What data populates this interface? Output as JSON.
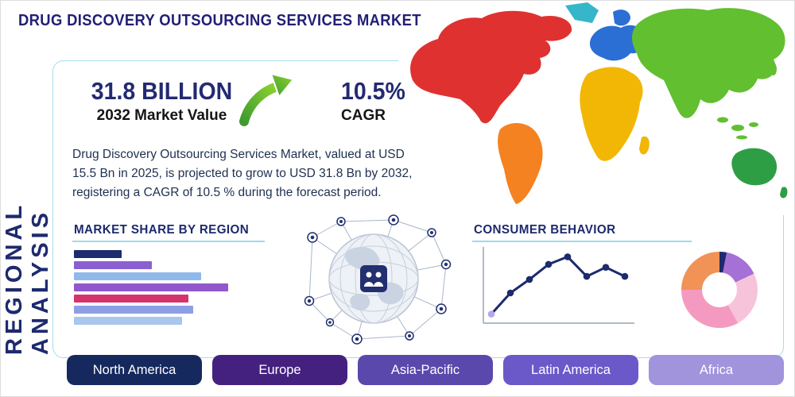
{
  "page": {
    "title": "DRUG DISCOVERY OUTSOURCING SERVICES MARKET",
    "side_label": "REGIONAL ANALYSIS"
  },
  "stats": {
    "market_value": "31.8 BILLION",
    "market_value_label": "2032 Market Value",
    "cagr_value": "10.5%",
    "cagr_label": "CAGR"
  },
  "description": "Drug Discovery Outsourcing Services Market, valued at USD 15.5 Bn in 2025, is projected to grow to USD 31.8 Bn by 2032, registering a CAGR of 10.5 % during the forecast period.",
  "sections": {
    "market_share_title": "MARKET SHARE BY REGION",
    "consumer_behavior_title": "CONSUMER BEHAVIOR"
  },
  "icons": {
    "growth_arrow": "growth-arrow-icon",
    "globe_network": "globe-network-icon"
  },
  "region_buttons": [
    {
      "label": "North America",
      "color": "#16295e"
    },
    {
      "label": "Europe",
      "color": "#45217f"
    },
    {
      "label": "Asia-Pacific",
      "color": "#5a48ad"
    },
    {
      "label": "Latin America",
      "color": "#6b59c9"
    },
    {
      "label": "Africa",
      "color": "#a193dc"
    }
  ],
  "map": {
    "colors": {
      "north_america": "#e03131",
      "greenland": "#35b6c9",
      "south_america": "#f58220",
      "europe": "#2b6fd4",
      "africa": "#f2b705",
      "asia": "#62bf30",
      "australia": "#2e9e44"
    }
  },
  "chart_data": [
    {
      "type": "bar",
      "title": "MARKET SHARE BY REGION",
      "orientation": "horizontal",
      "categories": [],
      "values": [
        30,
        49,
        80,
        97,
        72,
        75,
        68
      ],
      "colors": [
        "#1c2a6e",
        "#8a5fd0",
        "#8fb9ea",
        "#9257cc",
        "#d6336c",
        "#8d9fe4",
        "#a9c6ee"
      ],
      "xlim": [
        0,
        100
      ],
      "grid": false,
      "legend": false
    },
    {
      "type": "line",
      "title": "CONSUMER BEHAVIOR",
      "x": [
        1,
        2,
        3,
        4,
        5,
        6,
        7,
        8
      ],
      "values": [
        12,
        40,
        58,
        78,
        88,
        62,
        74,
        62
      ],
      "ylim": [
        0,
        100
      ],
      "line_color": "#1c2a6e",
      "first_point_color": "#b9a6e8",
      "axis_color": "#98a2b0",
      "grid": false,
      "legend": false
    },
    {
      "type": "pie",
      "donut": true,
      "segments": [
        {
          "value": 3,
          "color": "#1f2a6e"
        },
        {
          "value": 15,
          "color": "#a671d6"
        },
        {
          "value": 24,
          "color": "#f7c3da"
        },
        {
          "value": 33,
          "color": "#f49ac1"
        },
        {
          "value": 25,
          "color": "#f19257"
        }
      ]
    }
  ]
}
